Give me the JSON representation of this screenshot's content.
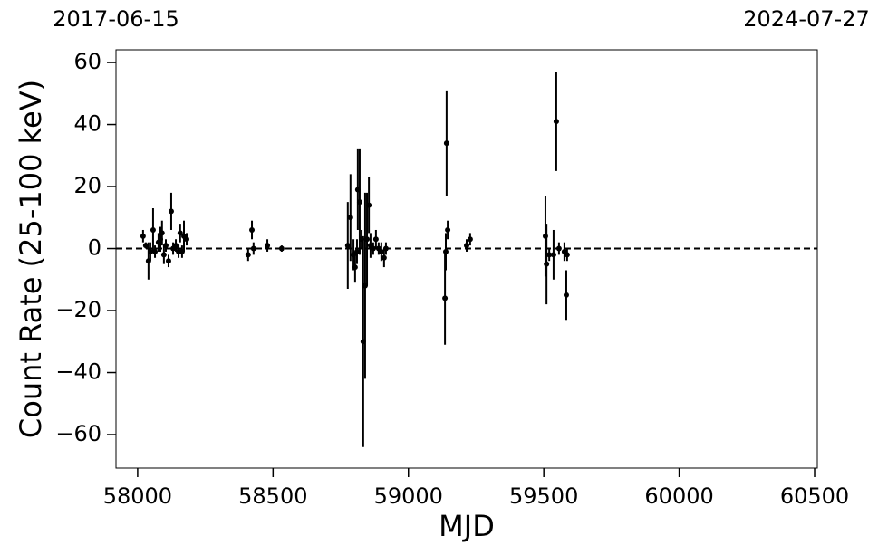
{
  "chart_data": {
    "type": "errorbar",
    "xlabel": "MJD",
    "ylabel": "Count Rate (25-100 keV)",
    "top_labels": [
      {
        "value": 57920,
        "label": "2017-06-15"
      },
      {
        "value": 60510,
        "label": "2024-07-27"
      }
    ],
    "xlim": [
      57920,
      60510
    ],
    "ylim": [
      -70.8,
      64.1
    ],
    "xticks": [
      58000,
      58500,
      59000,
      59500,
      60000,
      60500
    ],
    "yticks": [
      {
        "value": -60,
        "label": "−60"
      },
      {
        "value": -40,
        "label": "−40"
      },
      {
        "value": -20,
        "label": "−20"
      },
      0,
      20,
      40,
      60
    ],
    "hline": 0,
    "color": "#000000",
    "series": [
      {
        "x": [
          58020,
          58030,
          58040,
          58047,
          58057,
          58064,
          58077,
          58084,
          58090,
          58097,
          58104,
          58114,
          58124,
          58131,
          58141,
          58151,
          58157,
          58164,
          58171,
          58181,
          58408,
          58422,
          58428,
          58479,
          58532,
          58776,
          58786,
          58797,
          58803,
          58810,
          58813,
          58820,
          58827,
          58833,
          58840,
          58847,
          58854,
          58860,
          58870,
          58880,
          58890,
          58900,
          58910,
          58917,
          59135,
          59138,
          59141,
          59145,
          59215,
          59228,
          59506,
          59510,
          59520,
          59536,
          59546,
          59556,
          59576,
          59583,
          59586
        ],
        "values": [
          4,
          1,
          -4,
          -1,
          6,
          -1,
          2,
          3,
          5,
          -2,
          1,
          -4,
          12,
          0,
          1,
          -1,
          5,
          -1,
          4,
          3,
          -2,
          6,
          0,
          1,
          0,
          1,
          10,
          -2,
          -6,
          -1,
          19,
          15,
          3,
          -30,
          -12,
          3,
          14,
          1,
          0,
          3,
          0,
          -1,
          -3,
          0,
          -16,
          -1,
          34,
          6,
          1,
          3,
          4,
          -5,
          -2,
          -2,
          41,
          0,
          -1,
          -15,
          -2
        ],
        "errors": [
          2,
          1,
          6,
          3,
          7,
          2,
          3,
          4,
          4,
          3,
          2,
          2,
          6,
          2,
          2,
          2,
          3,
          2,
          5,
          2,
          2,
          3,
          2,
          2,
          1,
          14,
          14,
          5,
          5,
          4,
          13,
          17,
          3,
          34,
          30,
          15,
          9,
          4,
          2,
          3,
          2,
          3,
          3,
          2,
          15,
          6,
          17,
          3,
          2,
          2,
          13,
          13,
          2,
          8,
          16,
          2,
          3,
          8,
          2
        ]
      }
    ]
  }
}
